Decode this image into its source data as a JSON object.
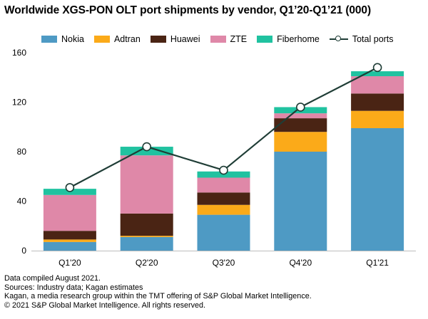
{
  "title": "Worldwide XGS-PON OLT port shipments by vendor, Q1’20-Q1’21 (000)",
  "chart_data": {
    "type": "bar",
    "stacked": true,
    "title": "Worldwide XGS-PON OLT port shipments by vendor, Q1’20-Q1’21 (000)",
    "categories": [
      "Q1'20",
      "Q2'20",
      "Q3'20",
      "Q4'20",
      "Q1'21"
    ],
    "series": [
      {
        "name": "Nokia",
        "color": "#4e9ac4",
        "values": [
          7,
          11,
          29,
          80,
          99
        ]
      },
      {
        "name": "Adtran",
        "color": "#fbaa19",
        "values": [
          2,
          1,
          8,
          16,
          14
        ]
      },
      {
        "name": "Huawei",
        "color": "#4a2414",
        "values": [
          7,
          18,
          10,
          11,
          14
        ]
      },
      {
        "name": "ZTE",
        "color": "#df88a8",
        "values": [
          29,
          47,
          12,
          4,
          14
        ]
      },
      {
        "name": "Fiberhome",
        "color": "#20c2a0",
        "values": [
          5,
          7,
          5,
          5,
          4
        ]
      }
    ],
    "line": {
      "name": "Total ports",
      "color": "#1f3d36",
      "values": [
        51,
        84,
        65,
        116,
        148
      ]
    },
    "ylim": [
      0,
      160
    ],
    "yticks": [
      0,
      40,
      80,
      120,
      160
    ],
    "xlabel": "",
    "ylabel": "",
    "legend_position": "top"
  },
  "footer": {
    "lines": [
      "Data compiled August 2021.",
      "Sources: Industry data; Kagan estimates",
      "Kagan, a media research group within the TMT offering of S&P Global Market Intelligence.",
      "© 2021 S&P Global Market Intelligence. All rights reserved."
    ]
  }
}
